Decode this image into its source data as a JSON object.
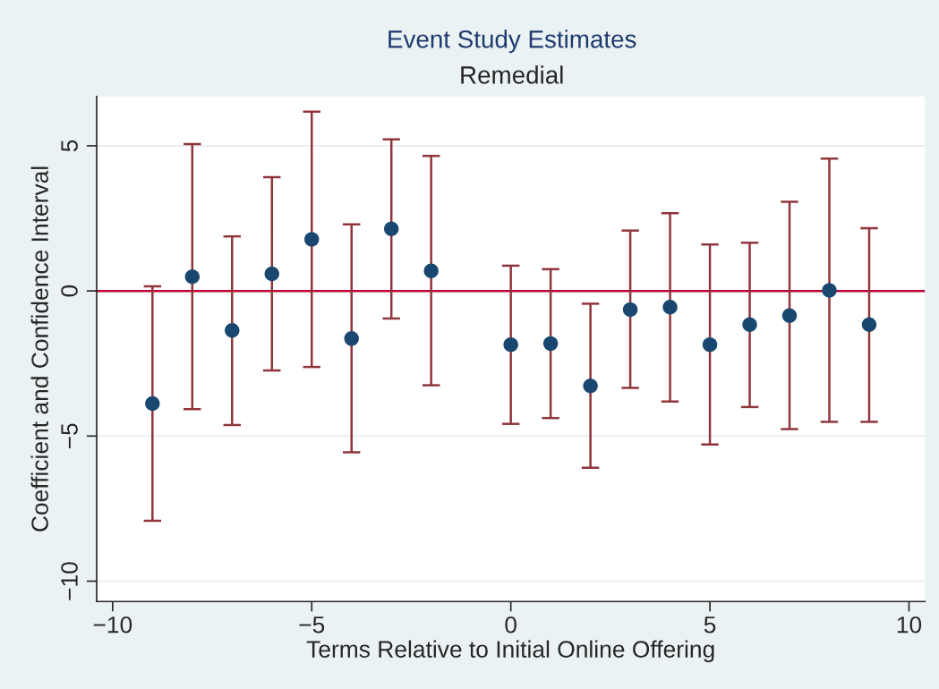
{
  "chart_data": {
    "type": "scatter",
    "title": "Event Study Estimates",
    "subtitle": "Remedial",
    "xlabel": "Terms Relative to Initial Online Offering",
    "ylabel": "Coefficient and Confidence Interval",
    "x": [
      -9,
      -8,
      -7,
      -6,
      -5,
      -4,
      -3,
      -2,
      0,
      1,
      2,
      3,
      4,
      5,
      6,
      7,
      8,
      9
    ],
    "series": [
      {
        "color": "#1a476f",
        "values": [
          -3.88,
          0.49,
          -1.36,
          0.59,
          1.78,
          -1.64,
          2.14,
          0.69,
          -1.85,
          -1.81,
          -3.27,
          -0.64,
          -0.56,
          -1.85,
          -1.16,
          -0.85,
          0.02,
          -1.16
        ],
        "errors": [
          [
            -7.92,
            0.16
          ],
          [
            -4.07,
            5.06
          ],
          [
            -4.62,
            1.88
          ],
          [
            -2.74,
            3.92
          ],
          [
            -2.62,
            6.18
          ],
          [
            -5.56,
            2.29
          ],
          [
            -0.95,
            5.22
          ],
          [
            -3.25,
            4.65
          ],
          [
            -4.58,
            0.87
          ],
          [
            -4.38,
            0.75
          ],
          [
            -6.09,
            -0.44
          ],
          [
            -3.34,
            2.08
          ],
          [
            -3.81,
            2.68
          ],
          [
            -5.29,
            1.6
          ],
          [
            -4.0,
            1.66
          ],
          [
            -4.76,
            3.07
          ],
          [
            -4.51,
            4.56
          ],
          [
            -4.51,
            2.16
          ]
        ]
      }
    ],
    "xlim": [
      -10.4,
      10.4
    ],
    "ylim": [
      -10.7,
      6.7
    ],
    "xticks": [
      -10,
      -5,
      0,
      5,
      10
    ],
    "yticks": [
      -10,
      -5,
      0,
      5
    ],
    "ref_lines": [
      {
        "axis": "y",
        "value": 0,
        "color": "#c10534"
      }
    ],
    "grid": "y",
    "marker": "circle",
    "legend": false
  }
}
